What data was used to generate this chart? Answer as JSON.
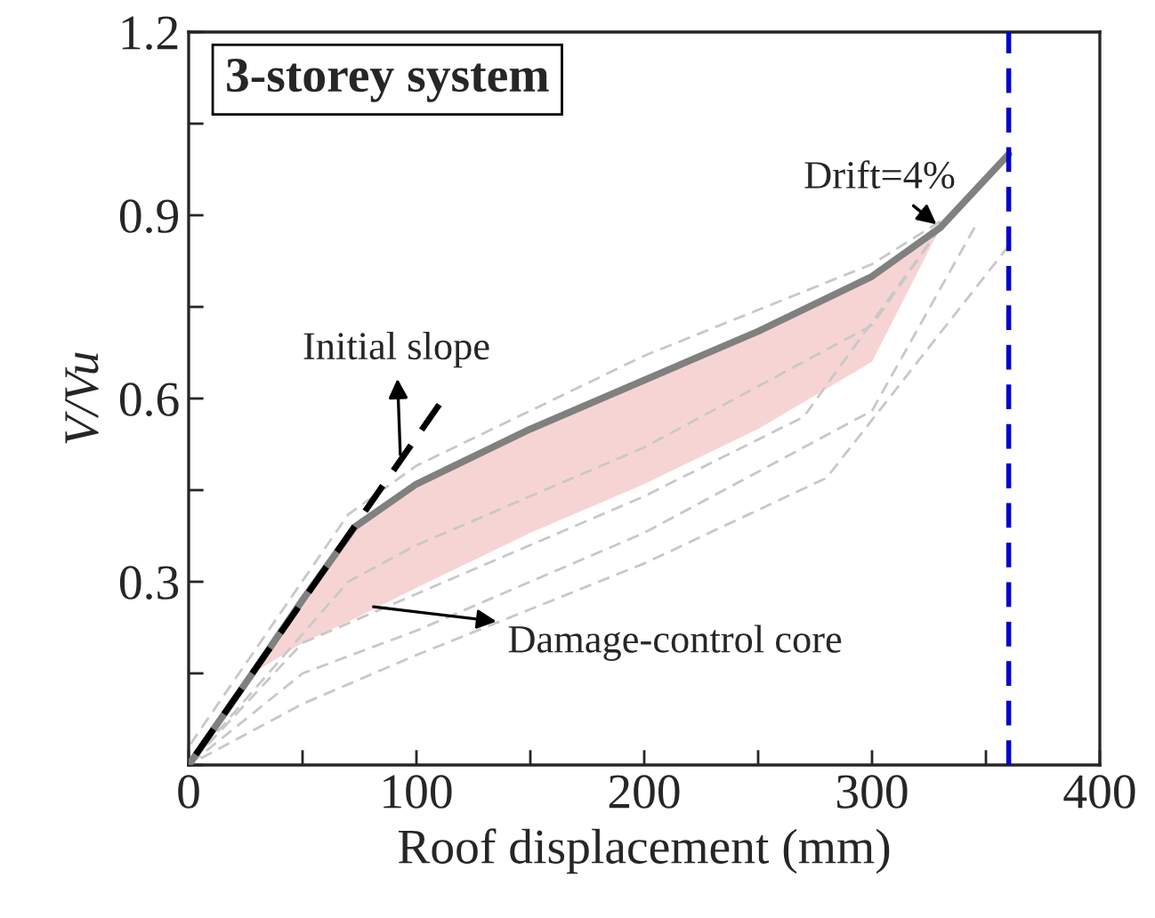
{
  "chart_data": {
    "type": "line",
    "title": "3-storey system",
    "xlabel": "Roof displacement (mm)",
    "ylabel": "V/Vu",
    "xlim": [
      0,
      400
    ],
    "ylim": [
      0,
      1.2
    ],
    "xticks": [
      0,
      {
        "value": 50,
        "label": null
      },
      100,
      {
        "value": 150,
        "label": null
      },
      200,
      {
        "value": 250,
        "label": null
      },
      300,
      {
        "value": 350,
        "label": null
      },
      400
    ],
    "yticks": [
      {
        "value": 0,
        "label": null
      },
      {
        "value": 0.15,
        "label": null
      },
      0.3,
      {
        "value": 0.45,
        "label": null
      },
      0.6,
      {
        "value": 0.75,
        "label": null
      },
      0.9,
      {
        "value": 1.05,
        "label": null
      },
      1.2
    ],
    "grid": false,
    "legend": false,
    "marker": "none",
    "series": [
      {
        "color": "#c8c8c8",
        "line_style": "dashed",
        "x": [
          0,
          70,
          100,
          200,
          300,
          330
        ],
        "values": [
          0.03,
          0.41,
          0.49,
          0.67,
          0.82,
          0.89
        ]
      },
      {
        "color": "#c8c8c8",
        "line_style": "dashed",
        "x": [
          0,
          70,
          100,
          200,
          300,
          330
        ],
        "values": [
          0,
          0.3,
          0.36,
          0.52,
          0.72,
          0.88
        ]
      },
      {
        "color": "#c8c8c8",
        "line_style": "dashed",
        "x": [
          0,
          50,
          100,
          200,
          270,
          330
        ],
        "values": [
          0,
          0.2,
          0.28,
          0.44,
          0.57,
          0.88
        ]
      },
      {
        "color": "#c8c8c8",
        "line_style": "dashed",
        "x": [
          0,
          50,
          100,
          200,
          300,
          345
        ],
        "values": [
          0,
          0.15,
          0.22,
          0.38,
          0.58,
          0.88
        ]
      },
      {
        "color": "#c8c8c8",
        "line_style": "dashed",
        "x": [
          0,
          50,
          100,
          200,
          280,
          360
        ],
        "values": [
          0,
          0.1,
          0.18,
          0.33,
          0.47,
          0.85
        ]
      },
      {
        "color": "#808080",
        "line_style": "solid",
        "x": [
          0,
          28,
          50,
          73,
          100,
          150,
          200,
          250,
          300,
          330,
          360
        ],
        "values": [
          0,
          0.15,
          0.27,
          0.39,
          0.46,
          0.55,
          0.63,
          0.71,
          0.8,
          0.88,
          1.0
        ],
        "lower": [
          null,
          0.15,
          0.2,
          0.24,
          0.29,
          0.38,
          0.46,
          0.55,
          0.66,
          0.88,
          null
        ],
        "upper": [
          null,
          0.15,
          0.27,
          0.39,
          0.46,
          0.55,
          0.63,
          0.71,
          0.8,
          0.88,
          null
        ]
      },
      {
        "color": "#000000",
        "line_style": "dashed",
        "x": [
          0,
          110
        ],
        "values": [
          0,
          0.59
        ]
      }
    ],
    "ref_lines": [
      {
        "axis": "x",
        "value": 360,
        "color": "#0000cc",
        "line_style": "dashed"
      }
    ],
    "annotations": [
      {
        "text": "Drift=4%",
        "x": 330,
        "y": 0.88
      },
      {
        "text": "Initial slope",
        "x": 93,
        "y": 0.5
      },
      {
        "text": "Damage-control core",
        "x": 79,
        "y": 0.26
      }
    ]
  }
}
